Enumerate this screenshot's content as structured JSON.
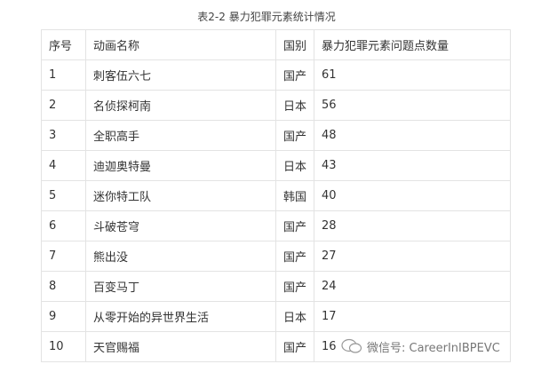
{
  "title": "表2-2  暴力犯罪元素统计情况",
  "table": {
    "headers": [
      "序号",
      "动画名称",
      "国别",
      "暴力犯罪元素问题点数量"
    ],
    "rows": [
      [
        "1",
        "刺客伍六七",
        "国产",
        "61"
      ],
      [
        "2",
        "名侦探柯南",
        "日本",
        "56"
      ],
      [
        "3",
        "全职高手",
        "国产",
        "48"
      ],
      [
        "4",
        "迪迦奥特曼",
        "日本",
        "43"
      ],
      [
        "5",
        "迷你特工队",
        "韩国",
        "40"
      ],
      [
        "6",
        "斗破苍穹",
        "国产",
        "28"
      ],
      [
        "7",
        "熊出没",
        "国产",
        "27"
      ],
      [
        "8",
        "百变马丁",
        "国产",
        "24"
      ],
      [
        "9",
        "从零开始的异世界生活",
        "日本",
        "17"
      ],
      [
        "10",
        "天官赐福",
        "国产",
        "16"
      ]
    ]
  },
  "watermark": {
    "icon": "wechat-icon",
    "text": "微信号: CareerInIBPEVC"
  }
}
